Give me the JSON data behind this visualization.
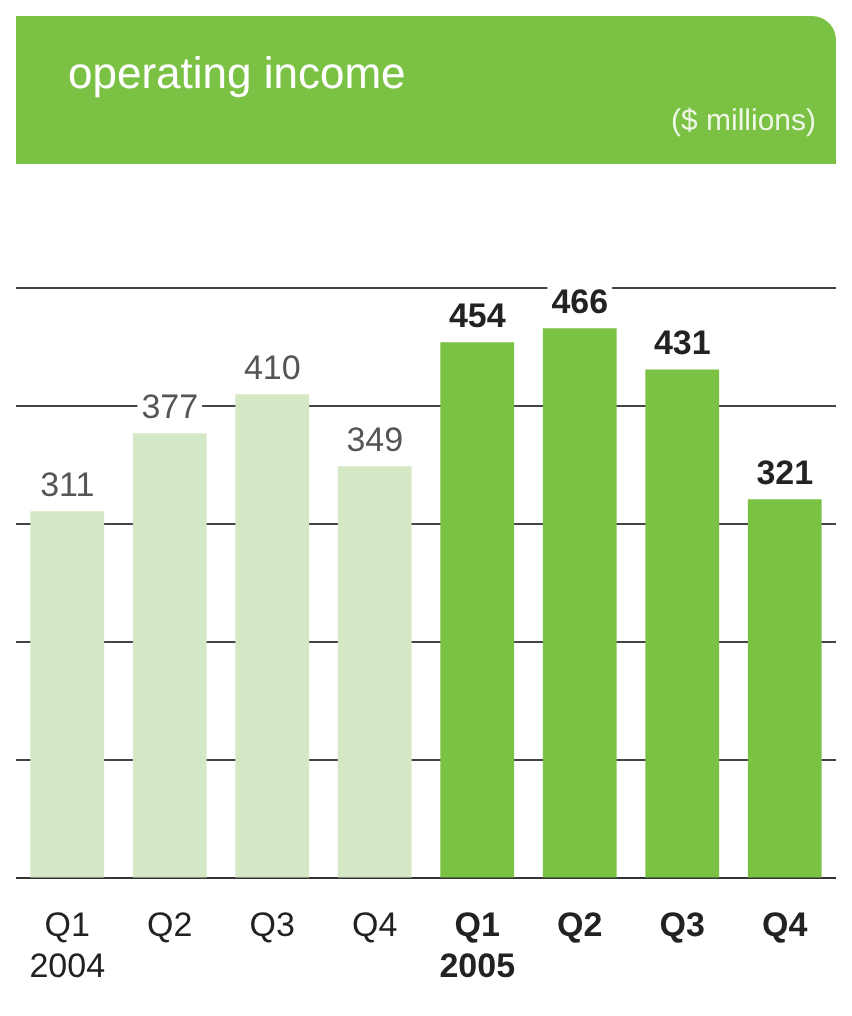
{
  "chart_data": {
    "type": "bar",
    "title": "operating income",
    "subtitle": "($ millions)",
    "categories": [
      "Q1 2004",
      "Q2",
      "Q3",
      "Q4",
      "Q1 2005",
      "Q2",
      "Q3",
      "Q4"
    ],
    "values": [
      311,
      377,
      410,
      349,
      454,
      466,
      431,
      321
    ],
    "colors": [
      "#d5e8c5",
      "#d5e8c5",
      "#d5e8c5",
      "#d5e8c5",
      "#7bc143",
      "#7bc143",
      "#7bc143",
      "#7bc143"
    ],
    "yticks": [
      {
        "value": 0,
        "label": null
      },
      {
        "value": 100,
        "label": null
      },
      {
        "value": 200,
        "label": null
      },
      {
        "value": 300,
        "label": null
      },
      {
        "value": 400,
        "label": null
      },
      {
        "value": 500,
        "label": null
      }
    ],
    "tick_labels": "x",
    "grid": "y",
    "data_labels": true,
    "legend": false
  }
}
